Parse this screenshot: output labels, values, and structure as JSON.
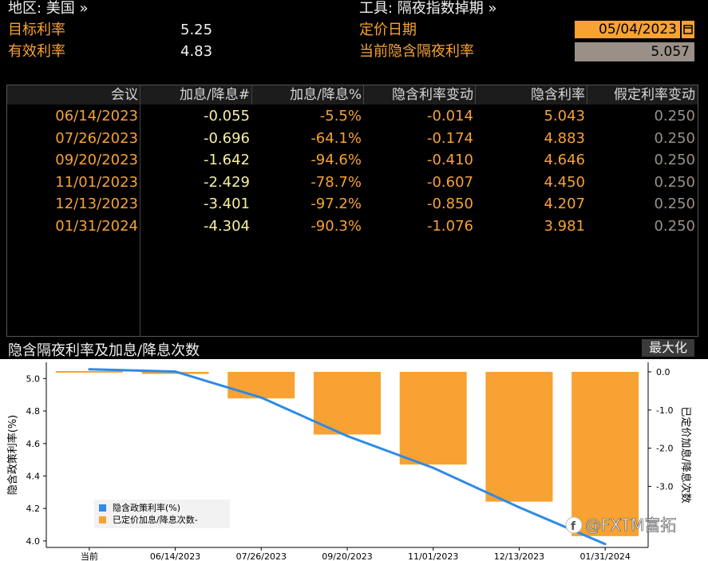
{
  "header": {
    "region_label": "地区: 美国 »",
    "tool_label": "工具: 隔夜指数掉期 »",
    "target_rate_label": "目标利率",
    "target_rate_value": "5.25",
    "effective_rate_label": "有效利率",
    "effective_rate_value": "4.83",
    "pricing_date_label": "定价日期",
    "pricing_date_value": "05/04/2023",
    "implied_rate_label": "当前隐含隔夜利率",
    "implied_rate_value": "5.057"
  },
  "table": {
    "columns": [
      "会议",
      "加息/降息#",
      "加息/降息%",
      "隐含利率变动",
      "隐含利率",
      "假定利率变动"
    ],
    "rows": [
      [
        "06/14/2023",
        "-0.055",
        "-5.5%",
        "-0.014",
        "5.043",
        "0.250"
      ],
      [
        "07/26/2023",
        "-0.696",
        "-64.1%",
        "-0.174",
        "4.883",
        "0.250"
      ],
      [
        "09/20/2023",
        "-1.642",
        "-94.6%",
        "-0.410",
        "4.646",
        "0.250"
      ],
      [
        "11/01/2023",
        "-2.429",
        "-78.7%",
        "-0.607",
        "4.450",
        "0.250"
      ],
      [
        "12/13/2023",
        "-3.401",
        "-97.2%",
        "-0.850",
        "4.207",
        "0.250"
      ],
      [
        "01/31/2024",
        "-4.304",
        "-90.3%",
        "-1.076",
        "3.981",
        "0.250"
      ]
    ]
  },
  "chart_panel": {
    "title": "隐含隔夜利率及加息/降息次数",
    "maximize_label": "最大化",
    "watermark": "@FXTM富拓"
  },
  "chart_data": {
    "type": "bar",
    "categories": [
      "当前",
      "06/14/2023",
      "07/26/2023",
      "09/20/2023",
      "11/01/2023",
      "12/13/2023",
      "01/31/2024"
    ],
    "series": [
      {
        "name": "隐含政策利率(%)",
        "type": "line",
        "axis": "left",
        "values": [
          5.057,
          5.043,
          4.883,
          4.646,
          4.45,
          4.207,
          3.981
        ],
        "color": "#2f8ae6"
      },
      {
        "name": "已定价加息/降息次数-",
        "type": "bar",
        "axis": "right",
        "values": [
          0,
          -0.055,
          -0.696,
          -1.642,
          -2.429,
          -3.401,
          -4.304
        ],
        "color": "#f7a233"
      }
    ],
    "ylabel": "隐含政策利率(%)",
    "y2label": "已定价加息/降息次数",
    "ylim": [
      3.96,
      5.1
    ],
    "y2lim": [
      -4.6,
      0.25
    ],
    "yticks": [
      "4.0",
      "4.2",
      "4.4",
      "4.6",
      "4.8",
      "5.0"
    ],
    "y2ticks": [
      "0.0",
      "-1.0",
      "-2.0",
      "-3.0"
    ],
    "grid": false,
    "legend_position": "bottom-left"
  },
  "colors": {
    "accent": "#f7a233",
    "line": "#2f8ae6",
    "background": "#000000"
  }
}
